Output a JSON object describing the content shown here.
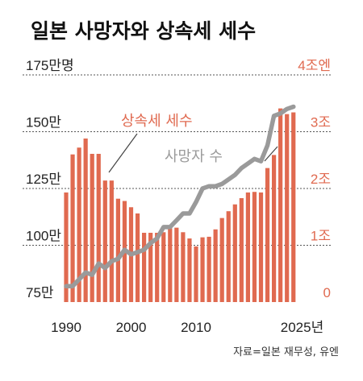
{
  "chart_data": {
    "type": "bar+line",
    "title": "일본 사망자와 상속세 세수",
    "source": "자료=일본 재무성, 유엔",
    "colors": {
      "bars": "#e06a50",
      "line": "#9a9a9a",
      "tax_text": "#e06a50"
    },
    "grid": true,
    "x_ticks": [
      "1990",
      "2000",
      "2010",
      "2025년"
    ],
    "x_tick_years": [
      1990,
      2000,
      2010,
      2025
    ],
    "y_left": {
      "range": [
        75,
        175
      ],
      "unit": "만명",
      "ticks": [
        "75만",
        "100만",
        "125만",
        "150만",
        "175만명"
      ],
      "tick_values": [
        75,
        100,
        125,
        150,
        175
      ]
    },
    "y_right": {
      "range": [
        0,
        4
      ],
      "unit": "조엔",
      "ticks": [
        "0",
        "1조",
        "2조",
        "3조",
        "4조엔"
      ],
      "tick_values": [
        0,
        1,
        2,
        3,
        4
      ]
    },
    "series": [
      {
        "name": "상속세 세수",
        "type": "bar",
        "axis": "right",
        "x": [
          1990,
          1991,
          1992,
          1993,
          1994,
          1995,
          1996,
          1997,
          1998,
          1999,
          2000,
          2001,
          2002,
          2003,
          2004,
          2005,
          2006,
          2007,
          2008,
          2009,
          2010,
          2011,
          2012,
          2013,
          2014,
          2015,
          2016,
          2017,
          2018,
          2019,
          2020,
          2021,
          2022,
          2023,
          2024,
          2025
        ],
        "values": [
          1.93,
          2.6,
          2.72,
          2.88,
          2.61,
          2.61,
          2.14,
          2.14,
          1.82,
          1.78,
          1.67,
          1.56,
          1.22,
          1.22,
          1.22,
          1.23,
          1.3,
          1.31,
          1.23,
          1.12,
          0.98,
          1.14,
          1.15,
          1.28,
          1.48,
          1.6,
          1.72,
          1.83,
          1.93,
          1.94,
          1.93,
          2.36,
          2.59,
          3.41,
          3.31,
          3.34
        ]
      },
      {
        "name": "사망자 수",
        "type": "line",
        "axis": "left",
        "x": [
          1990,
          1991,
          1992,
          1993,
          1994,
          1995,
          1996,
          1997,
          1998,
          1999,
          2000,
          2001,
          2002,
          2003,
          2004,
          2005,
          2006,
          2007,
          2008,
          2009,
          2010,
          2011,
          2012,
          2013,
          2014,
          2015,
          2016,
          2017,
          2018,
          2019,
          2020,
          2021,
          2022,
          2023,
          2024,
          2025
        ],
        "values": [
          82,
          82,
          85,
          88,
          87,
          92,
          90,
          93,
          94,
          98,
          96,
          97,
          98,
          101,
          103,
          108,
          108,
          111,
          114,
          114,
          119,
          125,
          126,
          126,
          127,
          129,
          131,
          134,
          136,
          138,
          137,
          144,
          157,
          158,
          160,
          161
        ]
      }
    ],
    "annotations": [
      "상속세 세수",
      "사망자 수"
    ]
  }
}
